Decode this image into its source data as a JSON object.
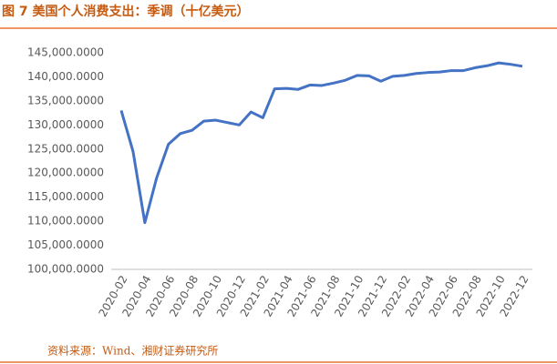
{
  "chart_data": {
    "type": "line",
    "title": "图 7 美国个人消费支出：季调（十亿美元）",
    "source": "资料来源：Wind、湘财证券研究所",
    "categories": [
      "2020-02",
      null,
      "2020-04",
      null,
      "2020-06",
      null,
      "2020-08",
      null,
      "2020-10",
      null,
      "2020-12",
      null,
      "2021-02",
      null,
      "2021-04",
      null,
      "2021-06",
      null,
      "2021-08",
      null,
      "2021-10",
      null,
      "2021-12",
      null,
      "2022-02",
      null,
      "2022-04",
      null,
      "2022-06",
      null,
      "2022-08",
      null,
      "2022-10",
      null,
      "2022-12"
    ],
    "values": [
      133000,
      124500,
      109700,
      119000,
      126000,
      128200,
      128900,
      130800,
      131000,
      130500,
      130000,
      132700,
      131500,
      137500,
      137600,
      137400,
      138300,
      138200,
      138700,
      139300,
      140300,
      140200,
      139100,
      140100,
      140300,
      140700,
      140900,
      141000,
      141300,
      141300,
      141900,
      142300,
      142900,
      142600,
      142200
    ],
    "color": "#4472c4",
    "ylim": [
      100000,
      145000
    ],
    "yticks": [
      {
        "value": 100000,
        "label": "100,000.0000"
      },
      {
        "value": 105000,
        "label": "105,000.0000"
      },
      {
        "value": 110000,
        "label": "110,000.0000"
      },
      {
        "value": 115000,
        "label": "115,000.0000"
      },
      {
        "value": 120000,
        "label": "120,000.0000"
      },
      {
        "value": 125000,
        "label": "125,000.0000"
      },
      {
        "value": 130000,
        "label": "130,000.0000"
      },
      {
        "value": 135000,
        "label": "135,000.0000"
      },
      {
        "value": 140000,
        "label": "140,000.0000"
      },
      {
        "value": 145000,
        "label": "145,000.0000"
      }
    ],
    "grid": false
  }
}
